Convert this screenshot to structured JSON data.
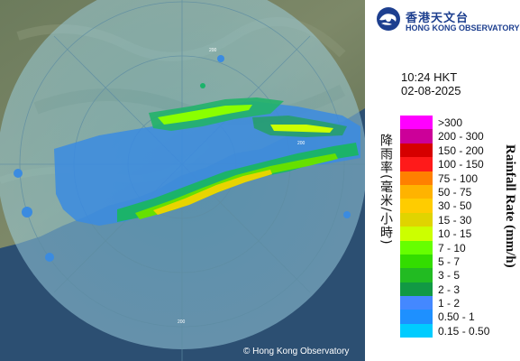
{
  "header": {
    "org_cn": "香港天文台",
    "org_en": "HONG KONG OBSERVATORY",
    "logo_icon": "hko-swirl-icon"
  },
  "timestamp": {
    "time": "10:24 HKT",
    "date": "02-08-2025"
  },
  "legend": {
    "title_cn": "降雨率(毫米/小時)",
    "title_en": "Rainfall Rate (mm/h)",
    "items": [
      {
        "label": ">300",
        "color": "#ff00ff"
      },
      {
        "label": "200 - 300",
        "color": "#cc0099"
      },
      {
        "label": "150 - 200",
        "color": "#d60000"
      },
      {
        "label": "100 - 150",
        "color": "#ff1a1a"
      },
      {
        "label": "75 - 100",
        "color": "#ff8000"
      },
      {
        "label": "50 - 75",
        "color": "#ffb300"
      },
      {
        "label": "30 - 50",
        "color": "#ffcc00"
      },
      {
        "label": "15 - 30",
        "color": "#e0d400"
      },
      {
        "label": "10 - 15",
        "color": "#ccff00"
      },
      {
        "label": "7 - 10",
        "color": "#66ff00"
      },
      {
        "label": "5 - 7",
        "color": "#33dd00"
      },
      {
        "label": "3 - 5",
        "color": "#22bb22"
      },
      {
        "label": "2 - 3",
        "color": "#119944"
      },
      {
        "label": "1 - 2",
        "color": "#4488ff"
      },
      {
        "label": "0.50 - 1",
        "color": "#1e90ff"
      },
      {
        "label": "0.15 - 0.50",
        "color": "#00ccff"
      }
    ]
  },
  "map": {
    "range_rings": [
      "200",
      "200",
      "200"
    ],
    "copyright": "© Hong Kong Observatory"
  }
}
